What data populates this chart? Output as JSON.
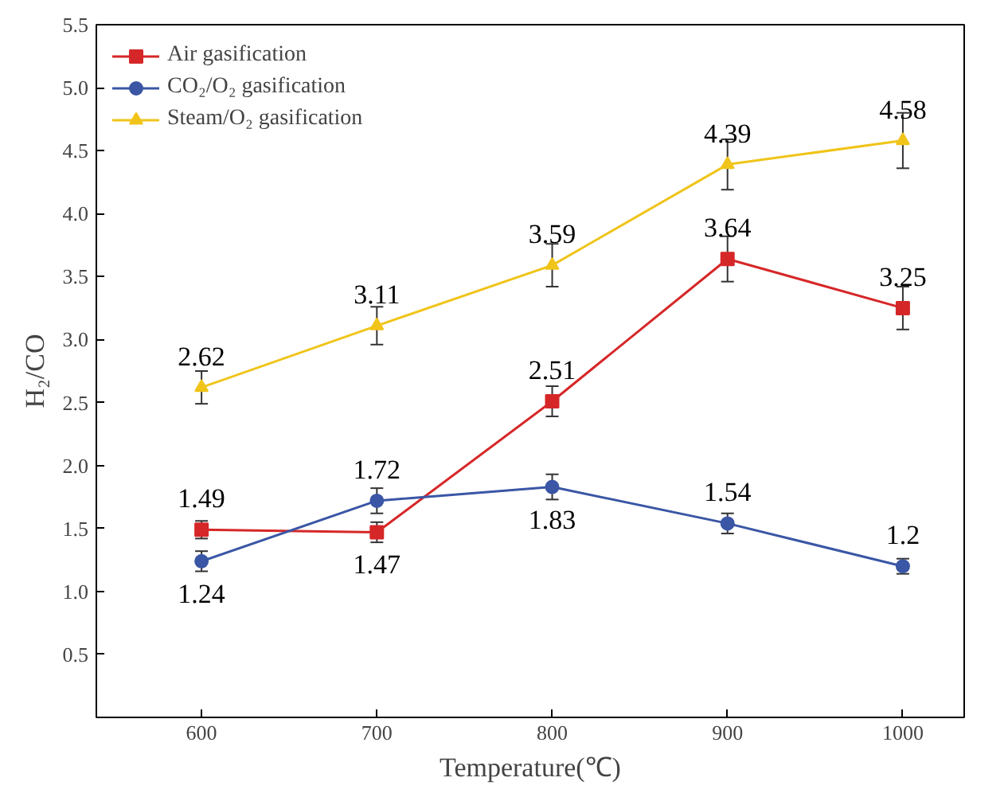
{
  "chart_data": {
    "type": "line",
    "xlabel": "Temperature(℃)",
    "ylabel": "H₂/CO",
    "x": [
      600,
      700,
      800,
      900,
      1000
    ],
    "series": [
      {
        "name": "Air gasification",
        "color": "#d62728",
        "marker": "square",
        "values": [
          1.49,
          1.47,
          2.51,
          3.64,
          3.25
        ],
        "errors": [
          0.07,
          0.08,
          0.12,
          0.18,
          0.17
        ]
      },
      {
        "name": "CO₂/O₂ gasification",
        "color": "#3a56a5",
        "marker": "circle",
        "values": [
          1.24,
          1.72,
          1.83,
          1.54,
          1.2
        ],
        "errors": [
          0.08,
          0.1,
          0.1,
          0.08,
          0.06
        ]
      },
      {
        "name": "Steam/O₂ gasification",
        "color": "#f0c419",
        "marker": "triangle",
        "values": [
          2.62,
          3.11,
          3.59,
          4.39,
          4.58
        ],
        "errors": [
          0.13,
          0.15,
          0.17,
          0.2,
          0.22
        ]
      }
    ],
    "xlim": [
      540,
      1035
    ],
    "ylim": [
      0,
      5.5
    ],
    "xticks": [
      600,
      700,
      800,
      900,
      1000
    ],
    "yticks": [
      0.5,
      {
        "value": 1,
        "label": "1.0"
      },
      1.5,
      {
        "value": 2,
        "label": "2.0"
      },
      2.5,
      {
        "value": 3,
        "label": "3.0"
      },
      3.5,
      {
        "value": 4,
        "label": "4.0"
      },
      4.5,
      {
        "value": 5,
        "label": "5.0"
      },
      5.5
    ],
    "grid": false,
    "legend": "top left",
    "data_labels": true,
    "line_style": "solid"
  }
}
